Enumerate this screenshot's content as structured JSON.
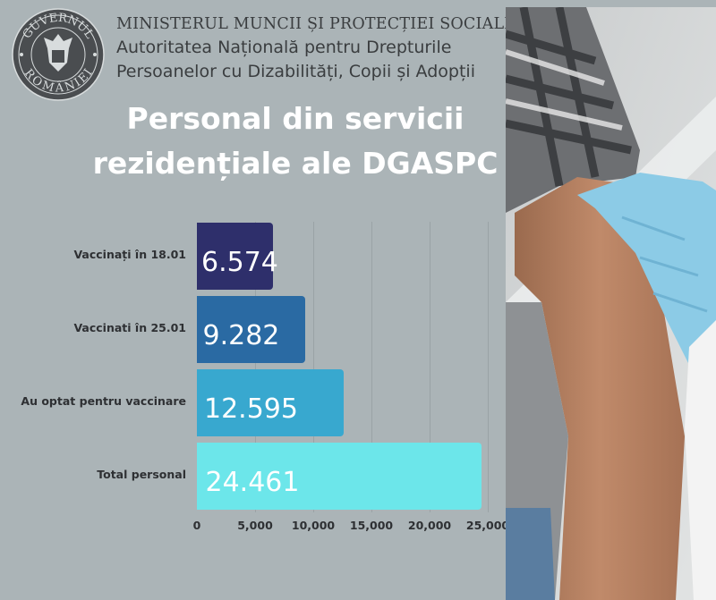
{
  "header": {
    "seal_text": "GUVERNUL ROMÂNIEI",
    "ministry": "MINISTERUL MUNCII ȘI PROTECȚIEI SOCIALE",
    "authority_line1": "Autoritatea Națională pentru Drepturile",
    "authority_line2": "Persoanelor cu Dizabilități, Copii și Adopții"
  },
  "title_line1": "Personal din servicii",
  "title_line2": "rezidențiale ale DGASPC",
  "chart_data": {
    "type": "bar",
    "orientation": "horizontal",
    "categories": [
      "Vaccinați în 18.01",
      "Vaccinati în 25.01",
      "Au optat pentru vaccinare",
      "Total personal"
    ],
    "values": [
      6574,
      9282,
      12595,
      24461
    ],
    "data_labels": [
      "6.574",
      "9.282",
      "12.595",
      "24.461"
    ],
    "colors": [
      "#2e2f6b",
      "#2a6aa3",
      "#38a8cf",
      "#6ce6ea"
    ],
    "xlim": [
      0,
      25000
    ],
    "xticks": [
      0,
      5000,
      10000,
      15000,
      20000,
      25000
    ],
    "xtick_labels": [
      "0",
      "5,000",
      "10,000",
      "15,000",
      "20,000",
      "25,000"
    ],
    "grid": true
  }
}
